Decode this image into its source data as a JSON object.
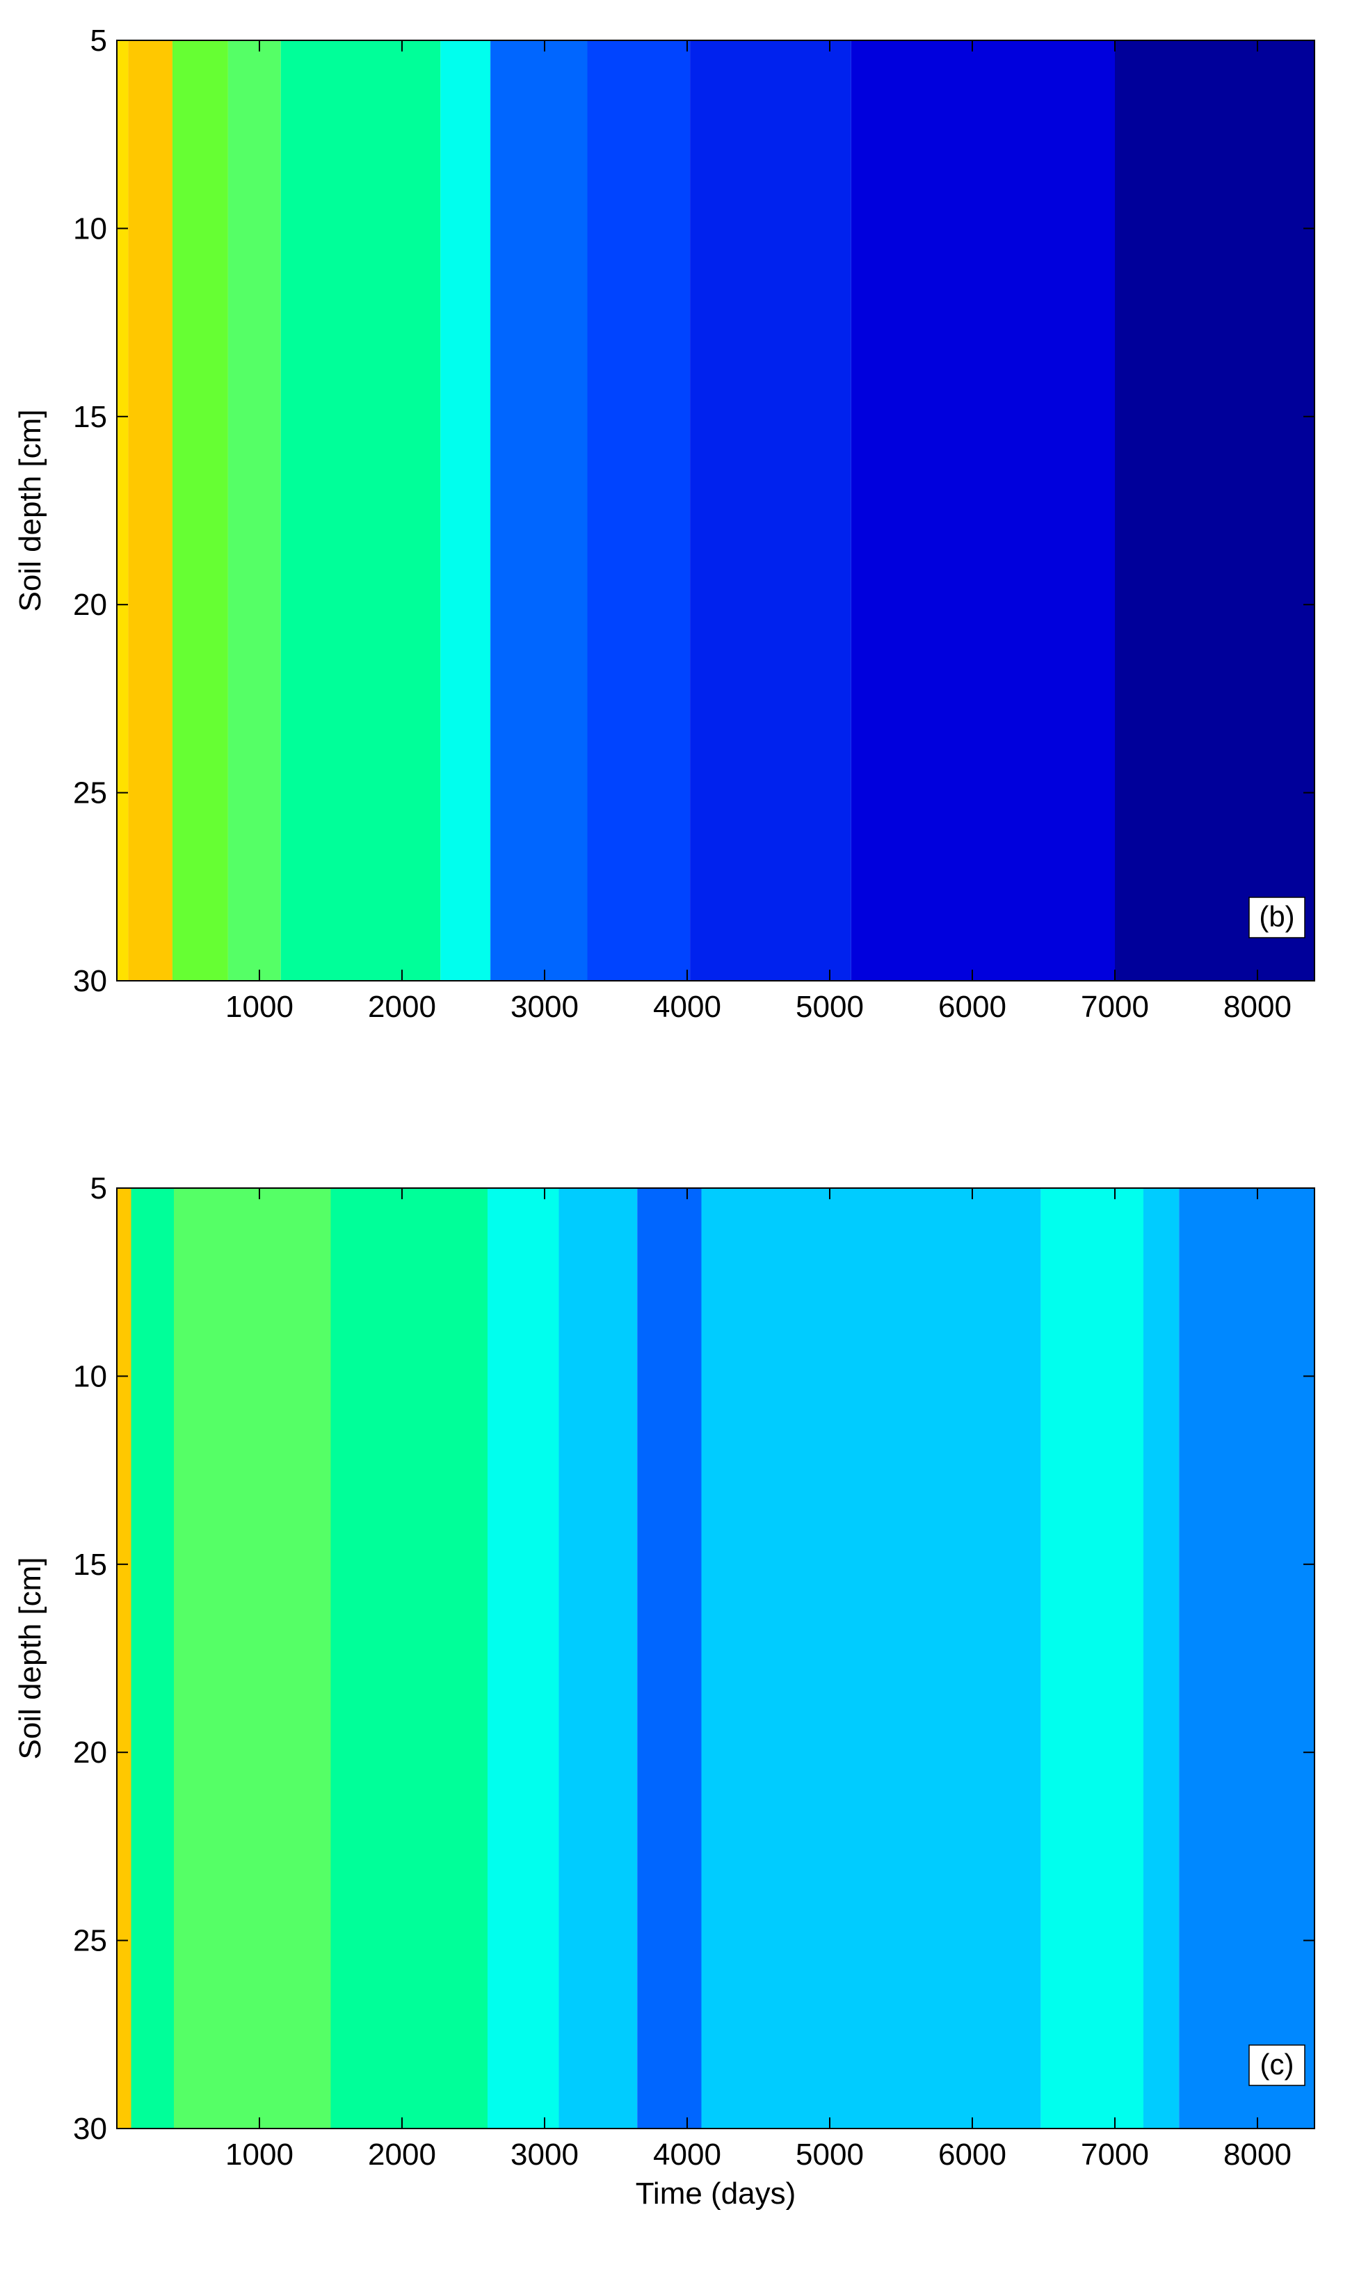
{
  "chart_data": [
    {
      "type": "heatmap",
      "panel_label": "(b)",
      "xlabel": "",
      "ylabel": "Soil depth [cm]",
      "xlim": [
        0,
        8400
      ],
      "ylim": [
        5,
        30
      ],
      "y_reversed": true,
      "xticks": [
        1000,
        2000,
        3000,
        4000,
        5000,
        6000,
        7000,
        8000
      ],
      "yticks": [
        5,
        10,
        15,
        20,
        25,
        30
      ],
      "grid": false,
      "legend": "none",
      "colormap": "jet",
      "bands": [
        {
          "x": [
            0,
            80
          ],
          "color": "#ffe100",
          "level": 0.68
        },
        {
          "x": [
            80,
            390
          ],
          "color": "#ffc800",
          "level": 0.62
        },
        {
          "x": [
            390,
            780
          ],
          "color": "#66ff33",
          "level": 0.45
        },
        {
          "x": [
            780,
            1150
          ],
          "color": "#55ff66",
          "level": 0.42
        },
        {
          "x": [
            1150,
            2270
          ],
          "color": "#00ff99",
          "level": 0.36
        },
        {
          "x": [
            2270,
            2620
          ],
          "color": "#00ffee",
          "level": 0.3
        },
        {
          "x": [
            2620,
            3300
          ],
          "color": "#0066ff",
          "level": 0.2
        },
        {
          "x": [
            3300,
            4020
          ],
          "color": "#0044ff",
          "level": 0.16
        },
        {
          "x": [
            4020,
            5150
          ],
          "color": "#0022ee",
          "level": 0.12
        },
        {
          "x": [
            5150,
            7000
          ],
          "color": "#0000dd",
          "level": 0.08
        },
        {
          "x": [
            7000,
            8400
          ],
          "color": "#00009a",
          "level": 0.02
        }
      ]
    },
    {
      "type": "heatmap",
      "panel_label": "(c)",
      "xlabel": "Time (days)",
      "ylabel": "Soil depth [cm]",
      "xlim": [
        0,
        8400
      ],
      "ylim": [
        5,
        30
      ],
      "y_reversed": true,
      "xticks": [
        1000,
        2000,
        3000,
        4000,
        5000,
        6000,
        7000,
        8000
      ],
      "yticks": [
        5,
        10,
        15,
        20,
        25,
        30
      ],
      "grid": false,
      "legend": "none",
      "colormap": "jet",
      "bands": [
        {
          "x": [
            0,
            100
          ],
          "color": "#ffc800",
          "level": 0.62
        },
        {
          "x": [
            100,
            400
          ],
          "color": "#00ff99",
          "level": 0.36
        },
        {
          "x": [
            400,
            1500
          ],
          "color": "#55ff66",
          "level": 0.42
        },
        {
          "x": [
            1500,
            2600
          ],
          "color": "#00ff99",
          "level": 0.36
        },
        {
          "x": [
            2600,
            3100
          ],
          "color": "#00ffee",
          "level": 0.3
        },
        {
          "x": [
            3100,
            3650
          ],
          "color": "#00ccff",
          "level": 0.26
        },
        {
          "x": [
            3650,
            4100
          ],
          "color": "#0066ff",
          "level": 0.2
        },
        {
          "x": [
            4100,
            6480
          ],
          "color": "#00ccff",
          "level": 0.26
        },
        {
          "x": [
            6480,
            7200
          ],
          "color": "#00ffee",
          "level": 0.3
        },
        {
          "x": [
            7200,
            7450
          ],
          "color": "#00ccff",
          "level": 0.26
        },
        {
          "x": [
            7450,
            8400
          ],
          "color": "#0088ff",
          "level": 0.22
        }
      ]
    }
  ]
}
